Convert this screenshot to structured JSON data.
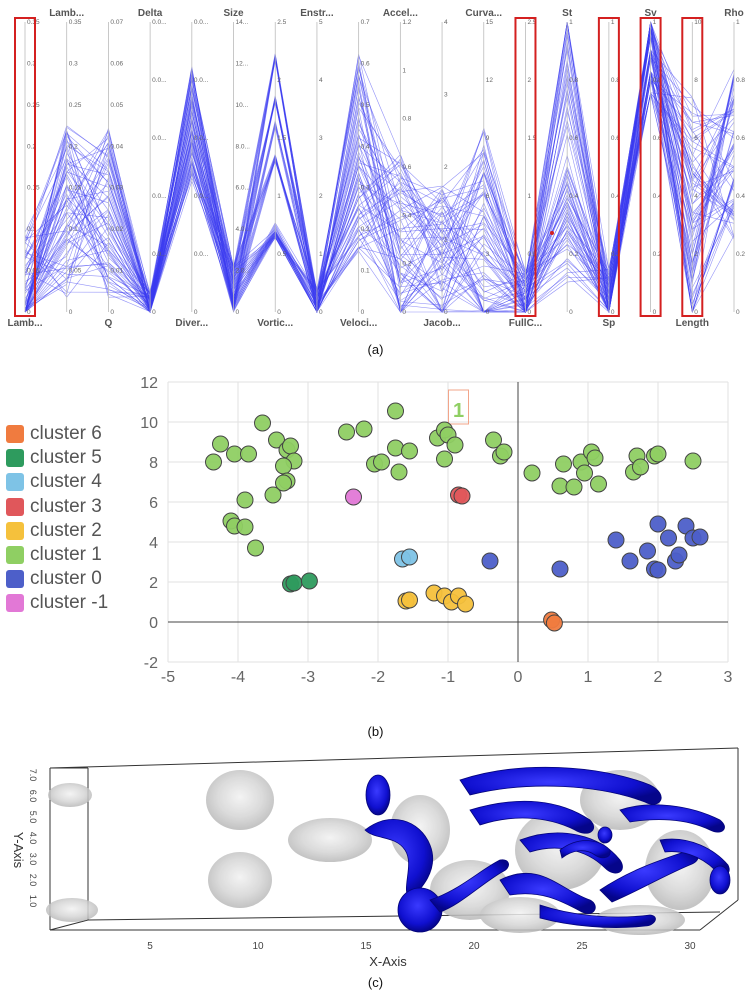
{
  "captions": {
    "a": "(a)",
    "b": "(b)",
    "c": "(c)"
  },
  "pcp": {
    "top_labels": [
      "Lamb...",
      "Delta",
      "Size",
      "Enstr...",
      "Accel...",
      "Curva...",
      "St",
      "Sv",
      "Rho"
    ],
    "bottom_labels": [
      "Lamb...",
      "Q",
      "Diver...",
      "Vortic...",
      "Veloci...",
      "Jacob...",
      "FullC...",
      "Sp",
      "Length"
    ],
    "tick_labels": [
      [
        "0.35",
        "0.3",
        "0.25",
        "0.2",
        "0.15",
        "0.1",
        "0.05",
        "0"
      ],
      [
        "0.35",
        "0.3",
        "0.25",
        "0.2",
        "0.15",
        "0.1",
        "0.05",
        "0"
      ],
      [
        "0.07",
        "0.06",
        "0.05",
        "0.04",
        "0.03",
        "0.02",
        "0.01",
        "0"
      ],
      [
        "0.0...",
        "0.0...",
        "0.0...",
        "0.0...",
        "0.0...",
        "0"
      ],
      [
        "0.0...",
        "0.0...",
        "0.0...",
        "0.0...",
        "0.0...",
        "0"
      ],
      [
        "14...",
        "12...",
        "10...",
        "8.0...",
        "6.0...",
        "4.0...",
        "2.0...",
        "0"
      ],
      [
        "2.5",
        "2",
        "1.5",
        "1",
        "0.5",
        "0"
      ],
      [
        "5",
        "4",
        "3",
        "2",
        "1",
        "0"
      ],
      [
        "0.7",
        "0.6",
        "0.5",
        "0.4",
        "0.3",
        "0.2",
        "0.1",
        "0"
      ],
      [
        "1.2",
        "1",
        "0.8",
        "0.6",
        "0.4",
        "0.2",
        "0"
      ],
      [
        "4",
        "3",
        "2",
        "1",
        "0"
      ],
      [
        "15",
        "12",
        "9",
        "6",
        "3",
        "0"
      ],
      [
        "2.5",
        "2",
        "1.5",
        "1",
        "0.5",
        "0"
      ],
      [
        "1",
        "0.8",
        "0.6",
        "0.4",
        "0.2",
        "0"
      ],
      [
        "1",
        "0.8",
        "0.6",
        "0.4",
        "0.2",
        "0"
      ],
      [
        "1",
        "0.8",
        "0.6",
        "0.4",
        "0.2",
        "0"
      ],
      [
        "10",
        "8",
        "6",
        "4",
        "2",
        "0"
      ],
      [
        "1",
        "0.8",
        "0.6",
        "0.4",
        "0.2",
        "0"
      ]
    ],
    "line_color": "#3a3af0",
    "highlight_color": "#d42020"
  },
  "chart_data": {
    "type": "scatter",
    "xlim": [
      -5,
      3
    ],
    "ylim": [
      -2,
      12
    ],
    "x_ticks": [
      "-5",
      "-4",
      "-3",
      "-2",
      "-1",
      "0",
      "1",
      "2",
      "3"
    ],
    "y_ticks": [
      "12",
      "10",
      "8",
      "6",
      "4",
      "2",
      "0",
      "-2"
    ],
    "annotation": "1",
    "series": [
      {
        "name": "cluster 6",
        "color": "#f07b3f",
        "points": [
          [
            0.48,
            0.1
          ],
          [
            0.52,
            -0.05
          ]
        ]
      },
      {
        "name": "cluster 5",
        "color": "#2e9b5e",
        "points": [
          [
            -3.25,
            1.9
          ],
          [
            -3.2,
            1.95
          ],
          [
            -2.98,
            2.05
          ]
        ]
      },
      {
        "name": "cluster 4",
        "color": "#7ec3e6",
        "points": [
          [
            -1.65,
            3.15
          ],
          [
            -1.55,
            3.25
          ]
        ]
      },
      {
        "name": "cluster 3",
        "color": "#e0575b",
        "points": [
          [
            -0.85,
            6.35
          ],
          [
            -0.8,
            6.3
          ]
        ]
      },
      {
        "name": "cluster 2",
        "color": "#f5c13c",
        "points": [
          [
            -1.6,
            1.05
          ],
          [
            -1.55,
            1.1
          ],
          [
            -1.2,
            1.45
          ],
          [
            -1.05,
            1.3
          ],
          [
            -0.95,
            1.0
          ],
          [
            -0.85,
            1.3
          ],
          [
            -0.75,
            0.9
          ]
        ]
      },
      {
        "name": "cluster 1",
        "color": "#8fcf63",
        "points": [
          [
            -4.35,
            8.0
          ],
          [
            -4.25,
            8.9
          ],
          [
            -4.05,
            8.4
          ],
          [
            -3.85,
            8.4
          ],
          [
            -3.65,
            9.95
          ],
          [
            -3.45,
            9.1
          ],
          [
            -3.3,
            8.6
          ],
          [
            -3.25,
            8.8
          ],
          [
            -3.2,
            8.05
          ],
          [
            -3.35,
            7.8
          ],
          [
            -3.3,
            7.05
          ],
          [
            -3.35,
            6.95
          ],
          [
            -3.5,
            6.35
          ],
          [
            -3.9,
            6.1
          ],
          [
            -4.1,
            5.05
          ],
          [
            -4.05,
            4.8
          ],
          [
            -3.9,
            4.75
          ],
          [
            -3.75,
            3.7
          ],
          [
            -2.45,
            9.5
          ],
          [
            -2.2,
            9.65
          ],
          [
            -2.05,
            7.9
          ],
          [
            -1.95,
            8.0
          ],
          [
            -1.75,
            10.55
          ],
          [
            -1.75,
            8.7
          ],
          [
            -1.7,
            7.5
          ],
          [
            -1.55,
            8.55
          ],
          [
            -1.15,
            9.2
          ],
          [
            -1.05,
            9.6
          ],
          [
            -1.05,
            8.15
          ],
          [
            -1.0,
            9.35
          ],
          [
            -0.9,
            8.85
          ],
          [
            -0.35,
            9.1
          ],
          [
            -0.25,
            8.3
          ],
          [
            -0.2,
            8.5
          ],
          [
            0.2,
            7.45
          ],
          [
            0.65,
            7.9
          ],
          [
            0.6,
            6.8
          ],
          [
            0.8,
            6.75
          ],
          [
            0.9,
            8.0
          ],
          [
            0.95,
            7.45
          ],
          [
            1.05,
            8.5
          ],
          [
            1.1,
            8.2
          ],
          [
            1.15,
            6.9
          ],
          [
            1.65,
            7.5
          ],
          [
            1.7,
            8.3
          ],
          [
            1.75,
            7.75
          ],
          [
            1.95,
            8.3
          ],
          [
            2.0,
            8.4
          ],
          [
            2.5,
            8.05
          ]
        ]
      },
      {
        "name": "cluster 0",
        "color": "#4d5fc9",
        "points": [
          [
            -0.4,
            3.05
          ],
          [
            0.6,
            2.65
          ],
          [
            1.4,
            4.1
          ],
          [
            1.6,
            3.05
          ],
          [
            1.85,
            3.55
          ],
          [
            1.95,
            2.65
          ],
          [
            2.0,
            2.6
          ],
          [
            2.0,
            4.9
          ],
          [
            2.15,
            4.2
          ],
          [
            2.25,
            3.05
          ],
          [
            2.3,
            3.35
          ],
          [
            2.4,
            4.8
          ],
          [
            2.5,
            4.2
          ],
          [
            2.6,
            4.25
          ]
        ]
      },
      {
        "name": "cluster -1",
        "color": "#e278d6",
        "points": [
          [
            -2.35,
            6.25
          ]
        ]
      }
    ]
  },
  "volume": {
    "x_axis_label": "X-Axis",
    "y_axis_label": "Y-Axis",
    "x_ticks": [
      "5",
      "10",
      "15",
      "20",
      "25",
      "30"
    ],
    "y_ticks": [
      "7.0",
      "6.0",
      "5.0",
      "4.0",
      "3.0",
      "2.0",
      "1.0"
    ],
    "blob_color": "#1414d8"
  }
}
